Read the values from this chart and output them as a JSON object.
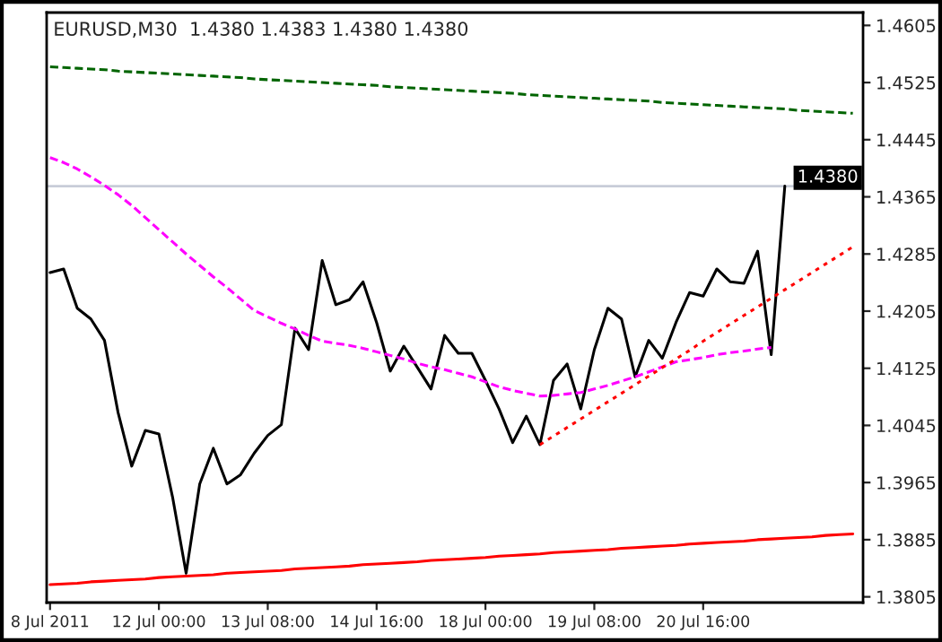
{
  "chart_data": {
    "type": "line",
    "title": "EURUSD,M30  1.4380 1.4383 1.4380 1.4380",
    "categories": [
      "8 Jul 2011",
      null,
      null,
      null,
      null,
      null,
      null,
      null,
      "12 Jul 00:00",
      null,
      null,
      null,
      null,
      null,
      null,
      null,
      "13 Jul 08:00",
      null,
      null,
      null,
      null,
      null,
      null,
      null,
      "14 Jul 16:00",
      null,
      null,
      null,
      null,
      null,
      null,
      null,
      "18 Jul 00:00",
      null,
      null,
      null,
      null,
      null,
      null,
      null,
      "19 Jul 08:00",
      null,
      null,
      null,
      null,
      null,
      null,
      null,
      "20 Jul 16:00",
      null,
      null,
      null,
      null,
      null,
      null,
      null,
      null,
      null,
      null,
      null
    ],
    "ylim": [
      1.3797,
      1.4623
    ],
    "yticks": [
      1.4605,
      1.4525,
      1.4445,
      1.4365,
      1.4285,
      1.4205,
      1.4125,
      1.4045,
      1.3965,
      1.3885,
      1.3805
    ],
    "grid": false,
    "ref_lines": [
      {
        "axis": "y",
        "value": 1.438,
        "label": "1.4380",
        "color": "#c8ccd8"
      }
    ],
    "series": [
      {
        "color": "#000000",
        "line_style": "solid",
        "values": [
          1.4259,
          1.4264,
          1.4209,
          1.4194,
          1.4164,
          1.4063,
          1.3988,
          1.4038,
          1.4033,
          1.3945,
          1.3838,
          1.3963,
          1.4013,
          1.3963,
          1.3976,
          1.4006,
          1.4031,
          1.4046,
          1.4181,
          1.4151,
          1.4276,
          1.4214,
          1.4221,
          1.4246,
          1.4189,
          1.4121,
          1.4156,
          1.4126,
          1.4096,
          1.4171,
          1.4146,
          1.4146,
          1.4108,
          1.4068,
          1.4021,
          1.4058,
          1.4018,
          1.4108,
          1.4131,
          1.4068,
          1.4151,
          1.4209,
          1.4194,
          1.4113,
          1.4164,
          1.4139,
          1.4189,
          1.4231,
          1.4226,
          1.4264,
          1.4246,
          1.4244,
          1.4289,
          1.4144,
          1.438,
          null,
          null,
          null,
          null,
          null
        ]
      },
      {
        "color": "#006400",
        "line_style": "dashed",
        "values": [
          1.4547,
          1.4546,
          1.4545,
          1.4544,
          1.4543,
          1.4541,
          1.454,
          1.4539,
          1.4538,
          1.4537,
          1.4536,
          1.4535,
          1.4534,
          1.4533,
          1.4532,
          1.453,
          1.4529,
          1.4528,
          1.4527,
          1.4526,
          1.4525,
          1.4524,
          1.4523,
          1.4522,
          1.4521,
          1.4519,
          1.4518,
          1.4517,
          1.4516,
          1.4515,
          1.4514,
          1.4513,
          1.4512,
          1.4511,
          1.451,
          1.4508,
          1.4507,
          1.4506,
          1.4505,
          1.4504,
          1.4503,
          1.4502,
          1.4501,
          1.45,
          1.4499,
          1.4497,
          1.4496,
          1.4495,
          1.4494,
          1.4493,
          1.4492,
          1.4491,
          1.449,
          1.4489,
          1.4488,
          1.4486,
          1.4485,
          1.4484,
          1.4483,
          1.4482
        ]
      },
      {
        "color": "#ff00ff",
        "line_style": "dashed",
        "values": [
          1.442,
          1.4413,
          1.4404,
          1.4393,
          1.4381,
          1.4368,
          1.4353,
          1.4336,
          1.4319,
          1.4302,
          1.4285,
          1.4269,
          1.4253,
          1.4238,
          1.4222,
          1.4206,
          1.4197,
          1.4188,
          1.418,
          1.4171,
          1.4163,
          1.416,
          1.4157,
          1.4153,
          1.4148,
          1.4143,
          1.4138,
          1.4132,
          1.4127,
          1.4123,
          1.4118,
          1.4113,
          1.4106,
          1.4099,
          1.4094,
          1.409,
          1.4086,
          1.4087,
          1.4089,
          1.4091,
          1.4096,
          1.4101,
          1.4107,
          1.4113,
          1.412,
          1.4127,
          1.4134,
          1.4137,
          1.414,
          1.4144,
          1.4147,
          1.4149,
          1.4152,
          1.4154,
          null,
          null,
          null,
          null,
          null,
          null
        ]
      },
      {
        "color": "#ff0000",
        "line_style": "dotted",
        "values": [
          null,
          null,
          null,
          null,
          null,
          null,
          null,
          null,
          null,
          null,
          null,
          null,
          null,
          null,
          null,
          null,
          null,
          null,
          null,
          null,
          null,
          null,
          null,
          null,
          null,
          null,
          null,
          null,
          null,
          null,
          null,
          null,
          null,
          null,
          null,
          null,
          1.4018,
          1.403,
          1.4042,
          1.4054,
          1.4066,
          1.4078,
          1.409,
          1.4102,
          1.4114,
          1.4126,
          1.4138,
          1.415,
          1.4163,
          1.4175,
          1.4187,
          1.4199,
          1.4211,
          1.4223,
          1.4235,
          1.4247,
          1.4259,
          1.4271,
          1.4283,
          1.4295
        ]
      },
      {
        "color": "#ff0000",
        "line_style": "solid",
        "values": [
          1.3822,
          1.3823,
          1.3824,
          1.3826,
          1.3827,
          1.3828,
          1.3829,
          1.383,
          1.3832,
          1.3833,
          1.3834,
          1.3835,
          1.3836,
          1.3838,
          1.3839,
          1.384,
          1.3841,
          1.3842,
          1.3844,
          1.3845,
          1.3846,
          1.3847,
          1.3848,
          1.385,
          1.3851,
          1.3852,
          1.3853,
          1.3854,
          1.3856,
          1.3857,
          1.3858,
          1.3859,
          1.386,
          1.3862,
          1.3863,
          1.3864,
          1.3865,
          1.3867,
          1.3868,
          1.3869,
          1.387,
          1.3871,
          1.3873,
          1.3874,
          1.3875,
          1.3876,
          1.3877,
          1.3879,
          1.388,
          1.3881,
          1.3882,
          1.3883,
          1.3885,
          1.3886,
          1.3887,
          1.3888,
          1.3889,
          1.3891,
          1.3892,
          1.3893
        ]
      }
    ]
  }
}
